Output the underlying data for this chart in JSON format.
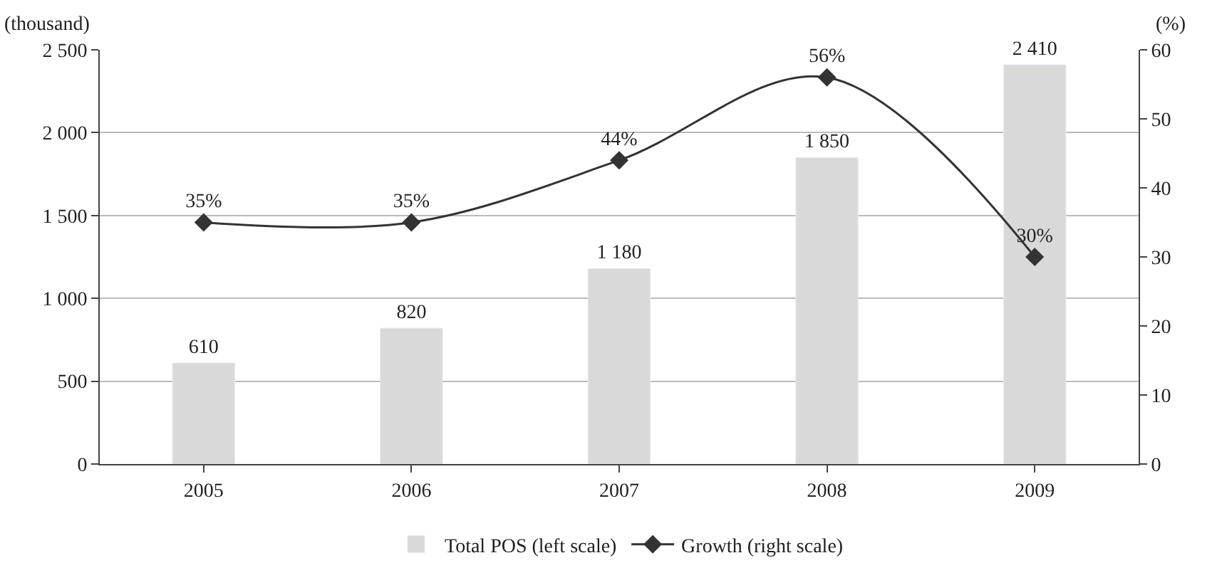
{
  "chart_data": {
    "type": "bar",
    "categories": [
      "2005",
      "2006",
      "2007",
      "2008",
      "2009"
    ],
    "ylabel": "(thousand)",
    "y2label": "(%)",
    "series": [
      {
        "name": "Total POS (left scale)",
        "color": "#d9d9d9",
        "values": [
          610,
          820,
          1180,
          1850,
          2410
        ],
        "value_labels": [
          "610",
          "820",
          "1 180",
          "1 850",
          "2 410"
        ]
      },
      {
        "name": "Growth (right scale)",
        "type": "line",
        "axis": "y2",
        "color": "#333333",
        "marker": "diamond",
        "line_style": "solid",
        "values": [
          35,
          35,
          44,
          56,
          30
        ],
        "value_labels": [
          "35%",
          "35%",
          "44%",
          "56%",
          "30%"
        ]
      }
    ],
    "ylim": [
      0,
      2500
    ],
    "yticks": [
      0,
      {
        "value": 500,
        "label": "500"
      },
      {
        "value": 1000,
        "label": "1 000"
      },
      {
        "value": 1500,
        "label": "1 500"
      },
      {
        "value": 2000,
        "label": "2 000"
      },
      {
        "value": 2500,
        "label": "2 500"
      }
    ],
    "y2lim": [
      0,
      60
    ],
    "y2ticks": [
      0,
      10,
      20,
      30,
      40,
      50,
      60
    ],
    "grid": "y",
    "legend": "bottom"
  }
}
